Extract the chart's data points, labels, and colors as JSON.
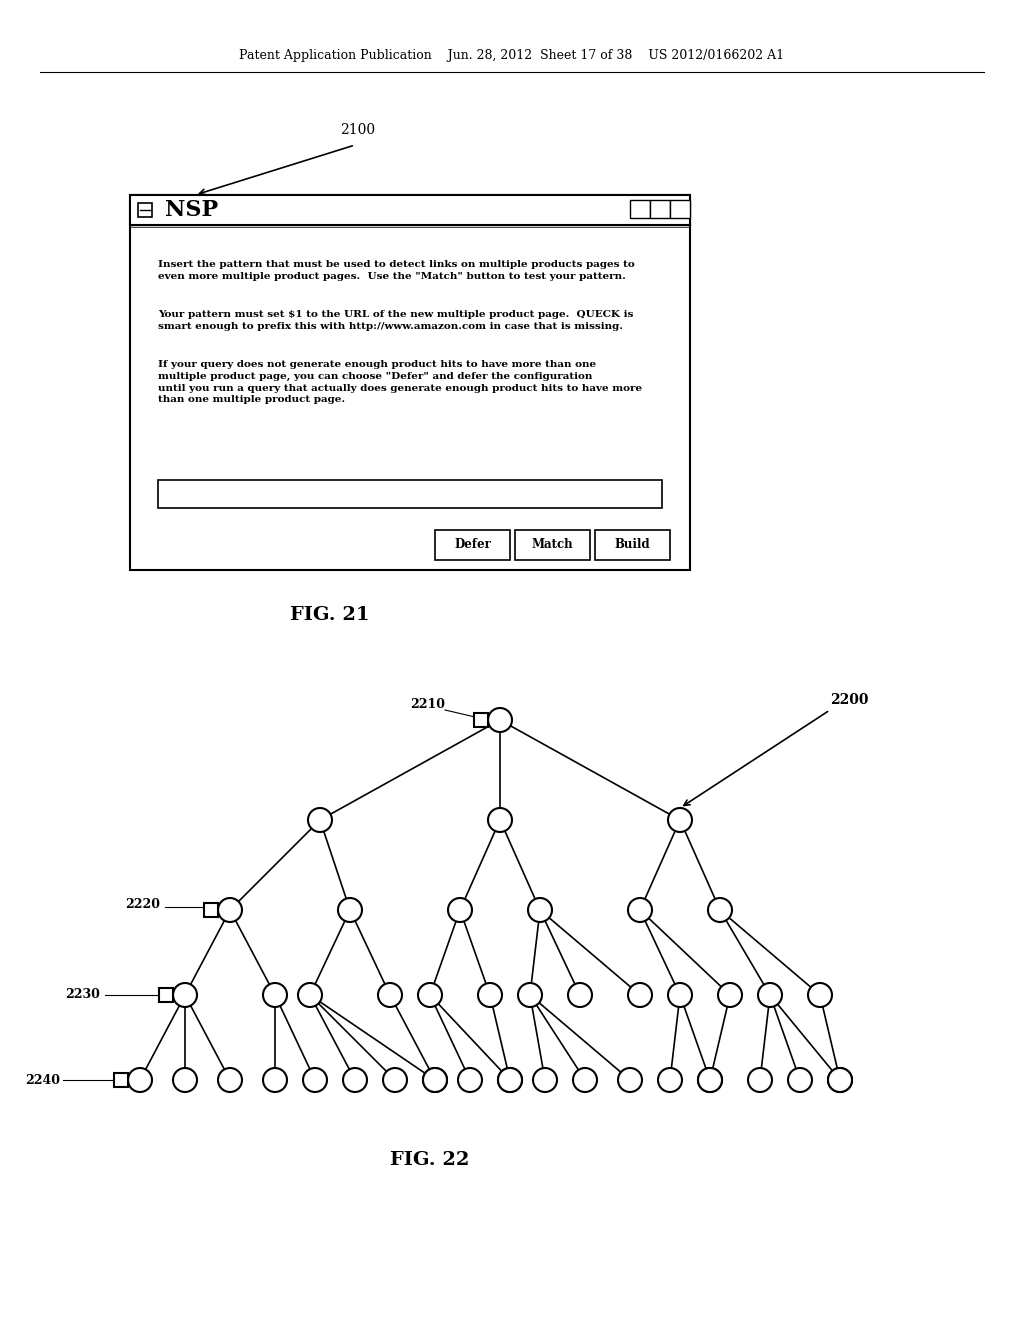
{
  "bg_color": "#ffffff",
  "header_text": "Patent Application Publication    Jun. 28, 2012  Sheet 17 of 38    US 2012/0166202 A1",
  "fig21_label": "2100",
  "fig21_caption": "FIG. 21",
  "fig22_caption": "FIG. 22",
  "nsp_title": "NSP",
  "dialog_text_1": "Insert the pattern that must be used to detect links on multiple products pages to\neven more multiple product pages.  Use the \"Match\" button to test your pattern.",
  "dialog_text_2": "Your pattern must set $1 to the URL of the new multiple product page.  QUECK is\nsmart enough to prefix this with http://www.amazon.com in case that is missing.",
  "dialog_text_3": "If your query does not generate enough product hits to have more than one\nmultiple product page, you can choose \"Defer\" and defer the configuration\nuntil you run a query that actually does generate enough product hits to have more\nthan one multiple product page.",
  "btn_defer": "Defer",
  "btn_match": "Match",
  "btn_build": "Build",
  "label_2210": "2210",
  "label_2220": "2220",
  "label_2230": "2230",
  "label_2240": "2240",
  "label_2200": "2200"
}
